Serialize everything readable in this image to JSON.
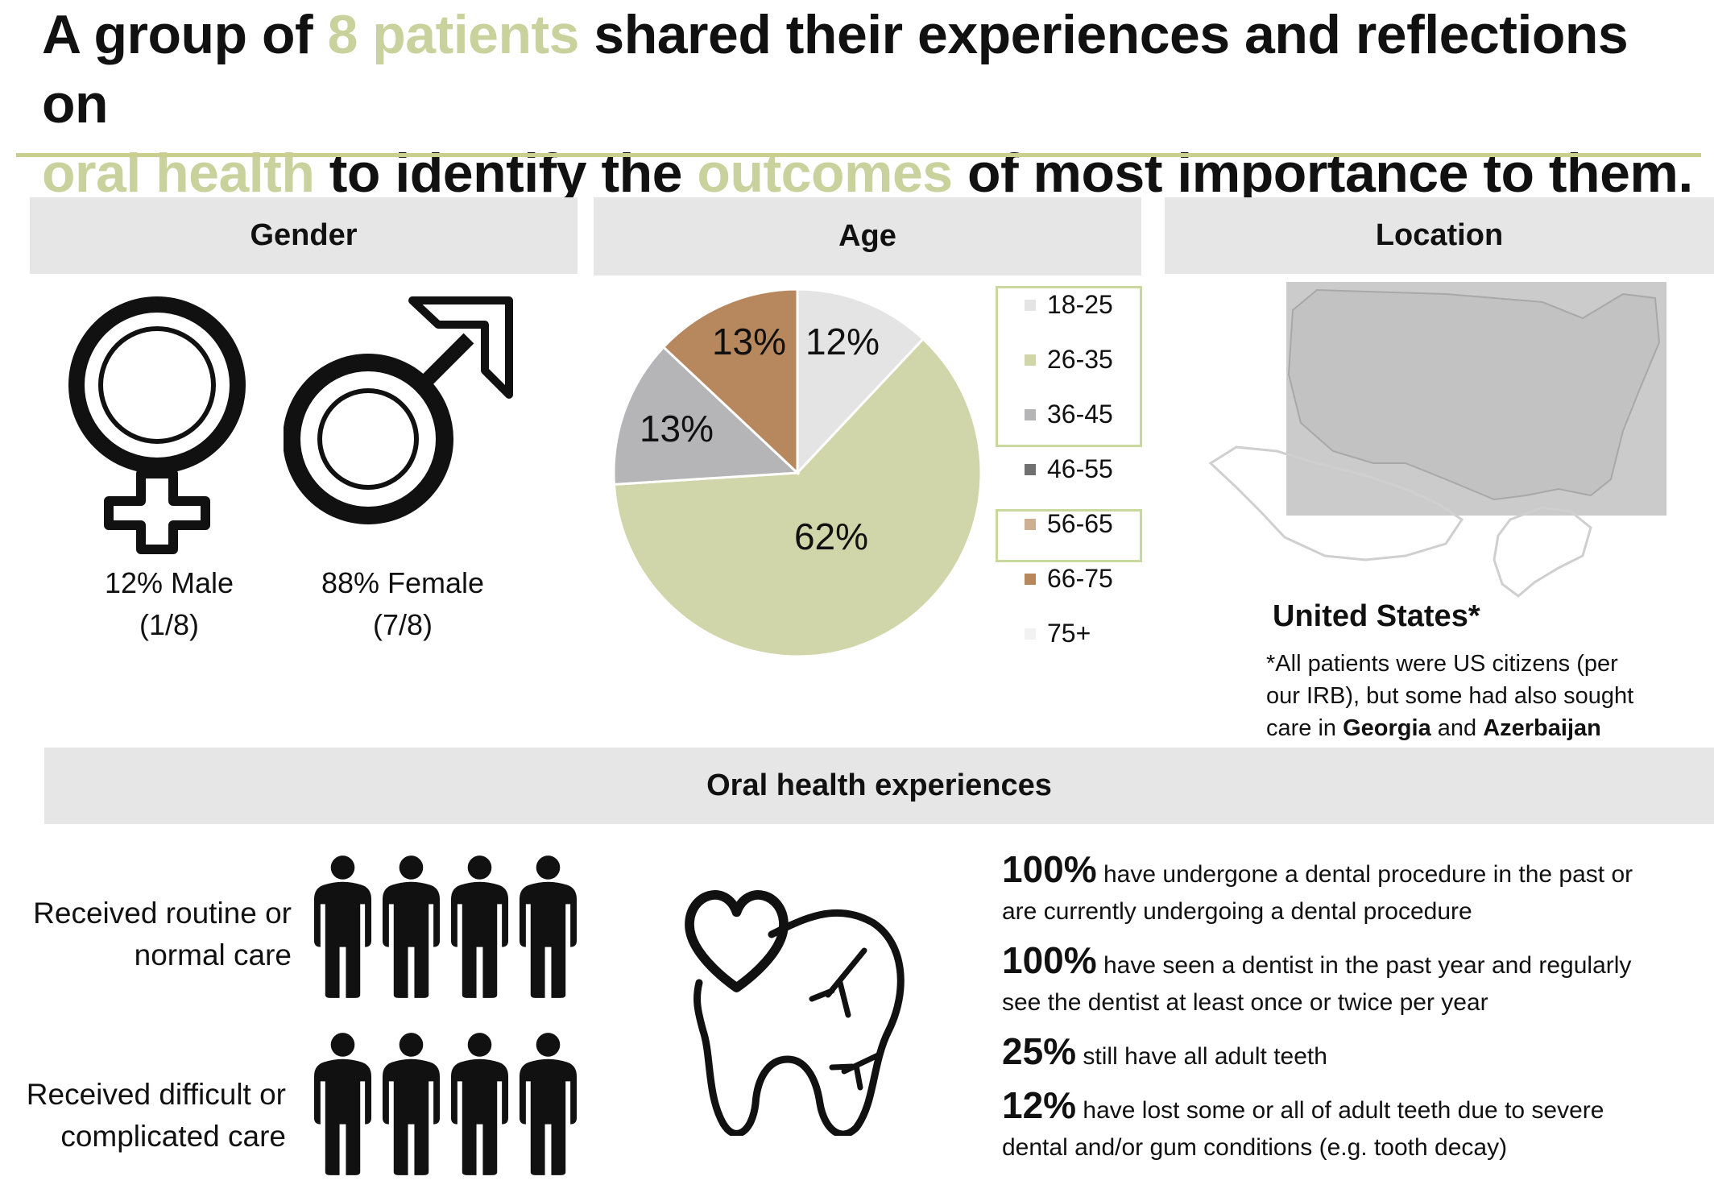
{
  "title": {
    "p1": "A group of ",
    "h1": "8 patients",
    "p2": " shared their experiences and reflections on ",
    "h2": "oral health",
    "p3": " to identify the ",
    "h3": "outcomes",
    "p4": " of most importance to them."
  },
  "colors": {
    "accent": "#c9d19c",
    "band": "#e6e6e6"
  },
  "gender": {
    "header": "Gender",
    "male_line1": "12% Male",
    "male_line2": "(1/8)",
    "female_line1": "88% Female",
    "female_line2": "(7/8)"
  },
  "age": {
    "header": "Age",
    "legend": [
      {
        "label": "18-25",
        "color": "#e4e4e4"
      },
      {
        "label": "26-35",
        "color": "#d0d6aa"
      },
      {
        "label": "36-45",
        "color": "#b5b5b8"
      },
      {
        "label": "46-55",
        "color": "#707070"
      },
      {
        "label": "56-65",
        "color": "#cdb092"
      },
      {
        "label": "66-75",
        "color": "#b7875d"
      },
      {
        "label": "75+",
        "color": "#f2f2f2"
      }
    ]
  },
  "chart_data": {
    "type": "pie",
    "categories": [
      "18-25",
      "26-35",
      "36-45",
      "66-75"
    ],
    "values": [
      12,
      62,
      13,
      13
    ],
    "labels": [
      "12%",
      "62%",
      "13%",
      "13%"
    ],
    "colors": [
      "#e4e4e4",
      "#d0d6aa",
      "#b5b5b8",
      "#b7875d"
    ],
    "legend": [
      "18-25",
      "26-35",
      "36-45",
      "46-55",
      "56-65",
      "66-75",
      "75+"
    ],
    "legend_placement": "right"
  },
  "location": {
    "header": "Location",
    "country": "United States*",
    "note_line1": "*All patients were US citizens (per",
    "note_line2": "our IRB), but some had also sought",
    "note_line3_pre": "care in ",
    "note_place1": "Georgia",
    "note_and": " and ",
    "note_place2": "Azerbaijan"
  },
  "experiences": {
    "header": "Oral health experiences",
    "routine_line1": "Received routine or",
    "routine_line2": "normal care",
    "difficult_line1": "Received difficult or",
    "difficult_line2": "complicated care",
    "stats": [
      {
        "pct": "100%",
        "line1": " have undergone a dental procedure in the past or",
        "line2": "are currently undergoing a dental procedure"
      },
      {
        "pct": "100%",
        "line1": " have seen a dentist in the past year and regularly",
        "line2": "see the dentist at least once or twice per year"
      },
      {
        "pct": "25%",
        "line1": " still have all adult teeth",
        "line2": ""
      },
      {
        "pct": "12%",
        "line1": " have lost some or all of adult teeth due to severe",
        "line2": "dental and/or gum conditions (e.g. tooth decay)"
      }
    ]
  }
}
